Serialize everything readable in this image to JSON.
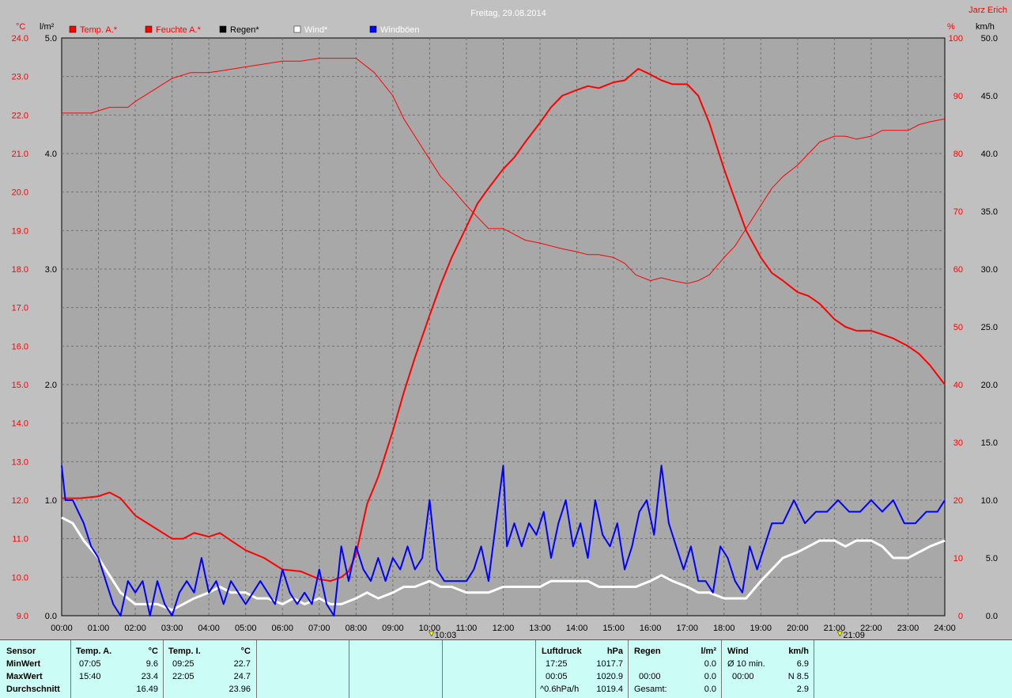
{
  "chart_data": {
    "type": "line",
    "title": "Freitag, 29.08.2014",
    "station": "Jarz Erich",
    "x_ticks": [
      "00:00",
      "01:00",
      "02:00",
      "03:00",
      "04:00",
      "05:00",
      "06:00",
      "07:00",
      "08:00",
      "09:00",
      "10:00",
      "11:00",
      "12:00",
      "13:00",
      "14:00",
      "15:00",
      "16:00",
      "17:00",
      "18:00",
      "19:00",
      "20:00",
      "21:00",
      "22:00",
      "23:00",
      "24:00"
    ],
    "xlim": [
      0,
      24
    ],
    "axes": {
      "temp": {
        "unit": "°C",
        "ylim": [
          9.0,
          24.0
        ],
        "ticks": [
          "9.0",
          "10.0",
          "11.0",
          "12.0",
          "13.0",
          "14.0",
          "15.0",
          "16.0",
          "17.0",
          "18.0",
          "19.0",
          "20.0",
          "21.0",
          "22.0",
          "23.0",
          "24.0"
        ],
        "color": "#ff0000"
      },
      "rain": {
        "unit": "l/m²",
        "ylim": [
          0.0,
          5.0
        ],
        "ticks": [
          "0.0",
          "1.0",
          "2.0",
          "3.0",
          "4.0",
          "5.0"
        ],
        "color": "#000000"
      },
      "hum": {
        "unit": "%",
        "ylim": [
          0,
          100
        ],
        "ticks": [
          "0",
          "10",
          "20",
          "30",
          "40",
          "50",
          "60",
          "70",
          "80",
          "90",
          "100"
        ],
        "color": "#ff0000"
      },
      "wind": {
        "unit": "km/h",
        "ylim": [
          0.0,
          50.0
        ],
        "ticks": [
          "0.0",
          "5.0",
          "10.0",
          "15.0",
          "20.0",
          "25.0",
          "30.0",
          "35.0",
          "40.0",
          "45.0",
          "50.0"
        ],
        "color": "#000000"
      }
    },
    "legend": [
      {
        "label": "Temp. A.*",
        "color": "#ff0000",
        "text_color": "#ff0000"
      },
      {
        "label": "Feuchte A.*",
        "color": "#ff0000",
        "text_color": "#ff0000"
      },
      {
        "label": "Regen*",
        "color": "#000000",
        "text_color": "#000000"
      },
      {
        "label": "Wind*",
        "color": "#ffffff",
        "text_color": "#ffffff"
      },
      {
        "label": "Windböen",
        "color": "#0000ff",
        "text_color": "#ffffff"
      }
    ],
    "markers": [
      {
        "x": 10.05,
        "label": "10:03"
      },
      {
        "x": 21.15,
        "label": "21:09"
      }
    ],
    "series": [
      {
        "name": "Temp. A.*",
        "axis": "temp",
        "color": "#ff0000",
        "width": 2,
        "x": [
          0,
          0.5,
          1,
          1.3,
          1.6,
          2,
          2.5,
          3,
          3.3,
          3.6,
          4,
          4.3,
          4.6,
          5,
          5.5,
          6,
          6.5,
          7,
          7.3,
          7.6,
          7.8,
          8,
          8.3,
          8.6,
          9,
          9.3,
          9.6,
          10,
          10.3,
          10.6,
          11,
          11.3,
          11.6,
          12,
          12.3,
          12.6,
          13,
          13.3,
          13.6,
          14,
          14.3,
          14.6,
          15,
          15.3,
          15.67,
          16,
          16.3,
          16.6,
          17,
          17.3,
          17.6,
          18,
          18.3,
          18.6,
          19,
          19.3,
          19.6,
          20,
          20.3,
          20.6,
          21,
          21.3,
          21.6,
          22,
          22.3,
          22.6,
          23,
          23.3,
          23.6,
          24
        ],
        "y": [
          12.05,
          12.05,
          12.1,
          12.2,
          12.05,
          11.6,
          11.3,
          11.0,
          11.0,
          11.15,
          11.05,
          11.15,
          10.95,
          10.7,
          10.5,
          10.2,
          10.15,
          9.95,
          9.9,
          10.0,
          10.15,
          10.6,
          11.9,
          12.6,
          13.8,
          14.8,
          15.7,
          16.8,
          17.6,
          18.3,
          19.1,
          19.7,
          20.1,
          20.6,
          20.9,
          21.3,
          21.8,
          22.2,
          22.5,
          22.65,
          22.75,
          22.7,
          22.85,
          22.9,
          23.2,
          23.05,
          22.9,
          22.8,
          22.8,
          22.5,
          21.8,
          20.6,
          19.8,
          19.0,
          18.3,
          17.9,
          17.7,
          17.4,
          17.3,
          17.1,
          16.7,
          16.5,
          16.4,
          16.4,
          16.3,
          16.2,
          16.0,
          15.8,
          15.5,
          15.0
        ]
      },
      {
        "name": "Feuchte A.*",
        "axis": "hum",
        "color": "#ff0000",
        "width": 1,
        "x": [
          0,
          0.5,
          0.8,
          1.3,
          1.8,
          2,
          2.5,
          3,
          3.5,
          4,
          4.5,
          5,
          5.5,
          6,
          6.5,
          7,
          7.5,
          8,
          8.5,
          9,
          9.3,
          9.6,
          10,
          10.3,
          10.6,
          11,
          11.3,
          11.6,
          12,
          12.3,
          12.6,
          13,
          13.3,
          13.6,
          14,
          14.3,
          14.6,
          15,
          15.3,
          15.6,
          16,
          16.3,
          16.6,
          17,
          17.3,
          17.6,
          18,
          18.3,
          18.6,
          19,
          19.3,
          19.6,
          20,
          20.3,
          20.6,
          21,
          21.3,
          21.6,
          22,
          22.3,
          22.6,
          23,
          23.3,
          23.6,
          24
        ],
        "y": [
          87,
          87,
          87,
          88,
          88,
          89,
          91,
          93,
          94,
          94,
          94.5,
          95,
          95.5,
          96,
          96,
          96.5,
          96.5,
          96.5,
          94,
          90,
          86,
          83,
          79,
          76,
          74,
          71,
          69,
          67,
          67,
          66,
          65,
          64.5,
          64,
          63.5,
          63,
          62.5,
          62.5,
          62,
          61,
          59,
          58,
          58.5,
          58,
          57.5,
          58,
          59,
          62,
          64,
          67,
          71,
          74,
          76,
          78,
          80,
          82,
          83,
          83,
          82.5,
          83,
          84,
          84,
          84,
          85,
          85.5,
          86
        ]
      },
      {
        "name": "Wind*",
        "axis": "wind",
        "color": "#ffffff",
        "width": 3,
        "x": [
          0,
          0.3,
          0.6,
          1,
          1.3,
          1.6,
          2,
          2.3,
          2.6,
          3,
          3.3,
          3.6,
          4,
          4.3,
          4.6,
          5,
          5.3,
          5.6,
          6,
          6.3,
          6.6,
          7,
          7.3,
          7.6,
          8,
          8.3,
          8.6,
          9,
          9.3,
          9.6,
          10,
          10.3,
          10.6,
          11,
          11.3,
          11.6,
          12,
          12.3,
          12.6,
          13,
          13.3,
          13.6,
          14,
          14.3,
          14.6,
          15,
          15.3,
          15.6,
          16,
          16.3,
          16.6,
          17,
          17.3,
          17.6,
          18,
          18.3,
          18.6,
          19,
          19.3,
          19.6,
          20,
          20.3,
          20.6,
          21,
          21.3,
          21.6,
          22,
          22.3,
          22.6,
          23,
          23.3,
          23.6,
          24
        ],
        "y": [
          8.5,
          8,
          6.5,
          5,
          3.5,
          2,
          1,
          1,
          1,
          0.5,
          1,
          1.5,
          2,
          2.5,
          2,
          2,
          1.5,
          1.5,
          1,
          1.5,
          1,
          1.5,
          1,
          1,
          1.5,
          2,
          1.5,
          2,
          2.5,
          2.5,
          3,
          2.5,
          2.5,
          2,
          2,
          2,
          2.5,
          2.5,
          2.5,
          2.5,
          3,
          3,
          3,
          3,
          2.5,
          2.5,
          2.5,
          2.5,
          3,
          3.5,
          3,
          2.5,
          2,
          2,
          1.5,
          1.5,
          1.5,
          3,
          4,
          5,
          5.5,
          6,
          6.5,
          6.5,
          6,
          6.5,
          6.5,
          6,
          5,
          5,
          5.5,
          6,
          6.5
        ]
      },
      {
        "name": "Windböen",
        "axis": "wind",
        "color": "#0000ff",
        "width": 2,
        "x": [
          0,
          0.1,
          0.3,
          0.6,
          0.8,
          1,
          1.2,
          1.4,
          1.6,
          1.8,
          2,
          2.2,
          2.4,
          2.6,
          2.8,
          3,
          3.2,
          3.4,
          3.6,
          3.8,
          4,
          4.2,
          4.4,
          4.6,
          4.8,
          5,
          5.2,
          5.4,
          5.6,
          5.8,
          6,
          6.2,
          6.4,
          6.6,
          6.8,
          7,
          7.2,
          7.4,
          7.6,
          7.8,
          8,
          8.2,
          8.4,
          8.6,
          8.8,
          9,
          9.2,
          9.4,
          9.6,
          9.8,
          10,
          10.2,
          10.4,
          10.6,
          10.8,
          11,
          11.2,
          11.4,
          11.6,
          11.8,
          12,
          12.1,
          12.3,
          12.5,
          12.7,
          12.9,
          13.1,
          13.3,
          13.5,
          13.7,
          13.9,
          14.1,
          14.3,
          14.5,
          14.7,
          14.9,
          15.1,
          15.3,
          15.5,
          15.7,
          15.9,
          16.1,
          16.3,
          16.5,
          16.7,
          16.9,
          17.1,
          17.3,
          17.5,
          17.7,
          17.9,
          18.1,
          18.3,
          18.5,
          18.7,
          18.9,
          19.1,
          19.3,
          19.6,
          19.9,
          20.2,
          20.5,
          20.8,
          21.1,
          21.4,
          21.7,
          22,
          22.3,
          22.6,
          22.9,
          23.2,
          23.5,
          23.8,
          24
        ],
        "y": [
          13,
          10,
          10,
          8,
          6,
          5,
          3,
          1,
          0,
          3,
          2,
          3,
          0,
          3,
          1,
          0,
          2,
          3,
          2,
          5,
          2,
          3,
          1,
          3,
          2,
          1,
          2,
          3,
          2,
          1,
          4,
          2,
          1,
          2,
          1,
          4,
          1,
          0,
          6,
          3,
          6,
          4,
          3,
          5,
          3,
          5,
          4,
          6,
          4,
          5,
          10,
          4,
          3,
          3,
          3,
          3,
          4,
          6,
          3,
          8,
          13,
          6,
          8,
          6,
          8,
          7,
          9,
          5,
          8,
          10,
          6,
          8,
          5,
          10,
          7,
          6,
          8,
          4,
          6,
          9,
          10,
          7,
          13,
          8,
          6,
          4,
          6,
          3,
          3,
          2,
          6,
          5,
          3,
          2,
          6,
          4,
          6,
          8,
          8,
          10,
          8,
          9,
          9,
          10,
          9,
          9,
          10,
          9,
          10,
          8,
          8,
          9,
          9,
          10
        ]
      }
    ]
  },
  "stats": {
    "sensor_label": "Sensor",
    "row_labels": [
      "MinWert",
      "MaxWert",
      "Durchschnitt"
    ],
    "temp_a": {
      "title": "Temp. A.",
      "unit": "°C",
      "min_time": "07:05",
      "min": "9.6",
      "max_time": "15:40",
      "max": "23.4",
      "avg": "16.49"
    },
    "temp_i": {
      "title": "Temp. I.",
      "unit": "°C",
      "min_time": "09:25",
      "min": "22.7",
      "max_time": "22:05",
      "max": "24.7",
      "avg": "23.96"
    },
    "pressure": {
      "title": "Luftdruck",
      "unit": "hPa",
      "min_time": "17:25",
      "min": "1017.7",
      "max_time": "00:05",
      "max": "1020.9",
      "trend": "^0.6hPa/h",
      "trend_val": "1019.4"
    },
    "rain": {
      "title": "Regen",
      "unit": "l/m²",
      "row2_time": "00:00",
      "row2": "0.0",
      "row3_label": "Gesamt:",
      "row3": "0.0",
      "row1": "0.0"
    },
    "wind": {
      "title": "Wind",
      "unit": "km/h",
      "row1_label": "Ø 10 min.",
      "row1": "6.9",
      "row2_time": "00:00",
      "row2": "N 8.5",
      "row3": "2.9"
    }
  }
}
